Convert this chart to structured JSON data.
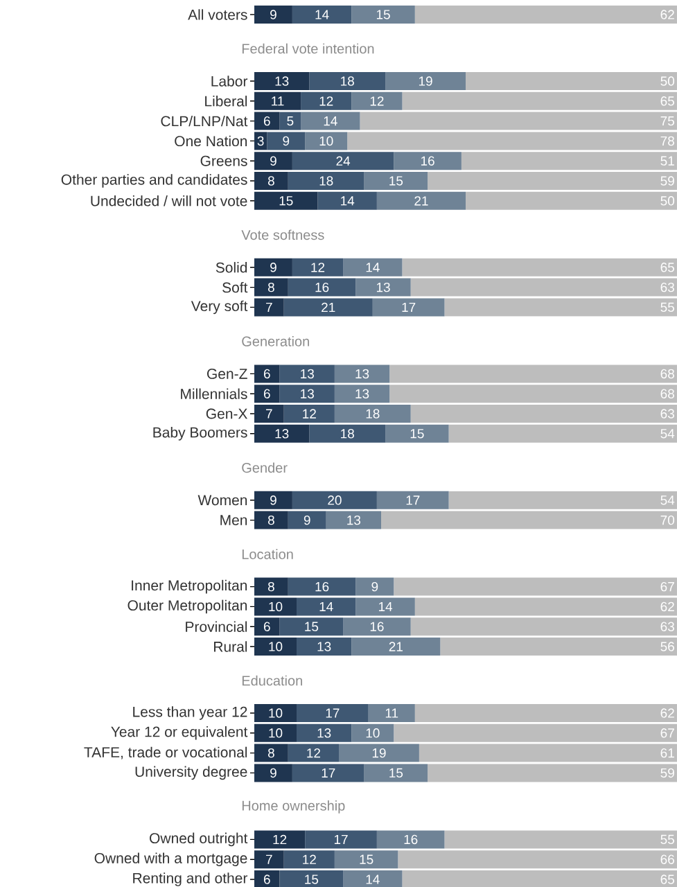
{
  "chart_data": [
    {
      "type": "bar",
      "orientation": "horizontal",
      "stacked": true,
      "tick_labels": "y",
      "categories": [
        "All voters"
      ],
      "series": [
        {
          "color": "#1f3550",
          "values": [
            9
          ],
          "value_labels": [
            "9"
          ]
        },
        {
          "color": "#3f5873",
          "values": [
            14
          ],
          "value_labels": [
            "14"
          ]
        },
        {
          "color": "#6f8396",
          "values": [
            15
          ],
          "value_labels": [
            "15"
          ]
        },
        {
          "color": "#bdbdbd",
          "values": [
            62
          ],
          "value_labels": [
            "62"
          ]
        }
      ]
    },
    {
      "type": "bar",
      "orientation": "horizontal",
      "stacked": true,
      "tick_labels": "y",
      "title": "Federal vote intention",
      "categories": [
        "Labor",
        "Liberal",
        "CLP/LNP/Nat",
        "One Nation",
        "Greens",
        "Other parties and candidates",
        "Undecided / will not vote"
      ],
      "series": [
        {
          "color": "#1f3550",
          "values": [
            13,
            11,
            6,
            3,
            9,
            8,
            15
          ],
          "value_labels": [
            "13",
            "11",
            "6",
            "3",
            "9",
            "8",
            "15"
          ]
        },
        {
          "color": "#3f5873",
          "values": [
            18,
            12,
            5,
            9,
            24,
            18,
            14
          ],
          "value_labels": [
            "18",
            "12",
            "5",
            "9",
            "24",
            "18",
            "14"
          ]
        },
        {
          "color": "#6f8396",
          "values": [
            19,
            12,
            14,
            10,
            16,
            15,
            21
          ],
          "value_labels": [
            "19",
            "12",
            "14",
            "10",
            "16",
            "15",
            "21"
          ]
        },
        {
          "color": "#bdbdbd",
          "values": [
            50,
            65,
            75,
            78,
            51,
            59,
            50
          ],
          "value_labels": [
            "50",
            "65",
            "75",
            "78",
            "51",
            "59",
            "50"
          ]
        }
      ]
    },
    {
      "type": "bar",
      "orientation": "horizontal",
      "stacked": true,
      "tick_labels": "y",
      "title": "Vote softness",
      "categories": [
        "Solid",
        "Soft",
        "Very soft"
      ],
      "series": [
        {
          "color": "#1f3550",
          "values": [
            9,
            8,
            7
          ],
          "value_labels": [
            "9",
            "8",
            "7"
          ]
        },
        {
          "color": "#3f5873",
          "values": [
            12,
            16,
            21
          ],
          "value_labels": [
            "12",
            "16",
            "21"
          ]
        },
        {
          "color": "#6f8396",
          "values": [
            14,
            13,
            17
          ],
          "value_labels": [
            "14",
            "13",
            "17"
          ]
        },
        {
          "color": "#bdbdbd",
          "values": [
            65,
            63,
            55
          ],
          "value_labels": [
            "65",
            "63",
            "55"
          ]
        }
      ]
    },
    {
      "type": "bar",
      "orientation": "horizontal",
      "stacked": true,
      "tick_labels": "y",
      "title": "Generation",
      "categories": [
        "Gen-Z",
        "Millennials",
        "Gen-X",
        "Baby Boomers"
      ],
      "series": [
        {
          "color": "#1f3550",
          "values": [
            6,
            6,
            7,
            13
          ],
          "value_labels": [
            "6",
            "6",
            "7",
            "13"
          ]
        },
        {
          "color": "#3f5873",
          "values": [
            13,
            13,
            12,
            18
          ],
          "value_labels": [
            "13",
            "13",
            "12",
            "18"
          ]
        },
        {
          "color": "#6f8396",
          "values": [
            13,
            13,
            18,
            15
          ],
          "value_labels": [
            "13",
            "13",
            "18",
            "15"
          ]
        },
        {
          "color": "#bdbdbd",
          "values": [
            68,
            68,
            63,
            54
          ],
          "value_labels": [
            "68",
            "68",
            "63",
            "54"
          ]
        }
      ]
    },
    {
      "type": "bar",
      "orientation": "horizontal",
      "stacked": true,
      "tick_labels": "y",
      "title": "Gender",
      "categories": [
        "Women",
        "Men"
      ],
      "series": [
        {
          "color": "#1f3550",
          "values": [
            9,
            8
          ],
          "value_labels": [
            "9",
            "8"
          ]
        },
        {
          "color": "#3f5873",
          "values": [
            20,
            9
          ],
          "value_labels": [
            "20",
            "9"
          ]
        },
        {
          "color": "#6f8396",
          "values": [
            17,
            13
          ],
          "value_labels": [
            "17",
            "13"
          ]
        },
        {
          "color": "#bdbdbd",
          "values": [
            54,
            70
          ],
          "value_labels": [
            "54",
            "70"
          ]
        }
      ]
    },
    {
      "type": "bar",
      "orientation": "horizontal",
      "stacked": true,
      "tick_labels": "y",
      "title": "Location",
      "categories": [
        "Inner Metropolitan",
        "Outer Metropolitan",
        "Provincial",
        "Rural"
      ],
      "series": [
        {
          "color": "#1f3550",
          "values": [
            8,
            10,
            6,
            10
          ],
          "value_labels": [
            "8",
            "10",
            "6",
            "10"
          ]
        },
        {
          "color": "#3f5873",
          "values": [
            16,
            14,
            15,
            13
          ],
          "value_labels": [
            "16",
            "14",
            "15",
            "13"
          ]
        },
        {
          "color": "#6f8396",
          "values": [
            9,
            14,
            16,
            21
          ],
          "value_labels": [
            "9",
            "14",
            "16",
            "21"
          ]
        },
        {
          "color": "#bdbdbd",
          "values": [
            67,
            62,
            63,
            56
          ],
          "value_labels": [
            "67",
            "62",
            "63",
            "56"
          ]
        }
      ]
    },
    {
      "type": "bar",
      "orientation": "horizontal",
      "stacked": true,
      "tick_labels": "y",
      "title": "Education",
      "categories": [
        "Less than year 12",
        "Year 12 or equivalent",
        "TAFE, trade or vocational",
        "University degree"
      ],
      "series": [
        {
          "color": "#1f3550",
          "values": [
            10,
            10,
            8,
            9
          ],
          "value_labels": [
            "10",
            "10",
            "8",
            "9"
          ]
        },
        {
          "color": "#3f5873",
          "values": [
            17,
            13,
            12,
            17
          ],
          "value_labels": [
            "17",
            "13",
            "12",
            "17"
          ]
        },
        {
          "color": "#6f8396",
          "values": [
            11,
            10,
            19,
            15
          ],
          "value_labels": [
            "11",
            "10",
            "19",
            "15"
          ]
        },
        {
          "color": "#bdbdbd",
          "values": [
            62,
            67,
            61,
            59
          ],
          "value_labels": [
            "62",
            "67",
            "61",
            "59"
          ]
        }
      ]
    },
    {
      "type": "bar",
      "orientation": "horizontal",
      "stacked": true,
      "tick_labels": "y",
      "title": "Home ownership",
      "categories": [
        "Owned outright",
        "Owned with a mortgage",
        "Renting and other"
      ],
      "series": [
        {
          "color": "#1f3550",
          "values": [
            12,
            7,
            6
          ],
          "value_labels": [
            "12",
            "7",
            "6"
          ]
        },
        {
          "color": "#3f5873",
          "values": [
            17,
            12,
            15
          ],
          "value_labels": [
            "17",
            "12",
            "15"
          ]
        },
        {
          "color": "#6f8396",
          "values": [
            16,
            15,
            14
          ],
          "value_labels": [
            "16",
            "15",
            "14"
          ]
        },
        {
          "color": "#bdbdbd",
          "values": [
            55,
            66,
            65
          ],
          "value_labels": [
            "55",
            "66",
            "65"
          ]
        }
      ]
    }
  ]
}
